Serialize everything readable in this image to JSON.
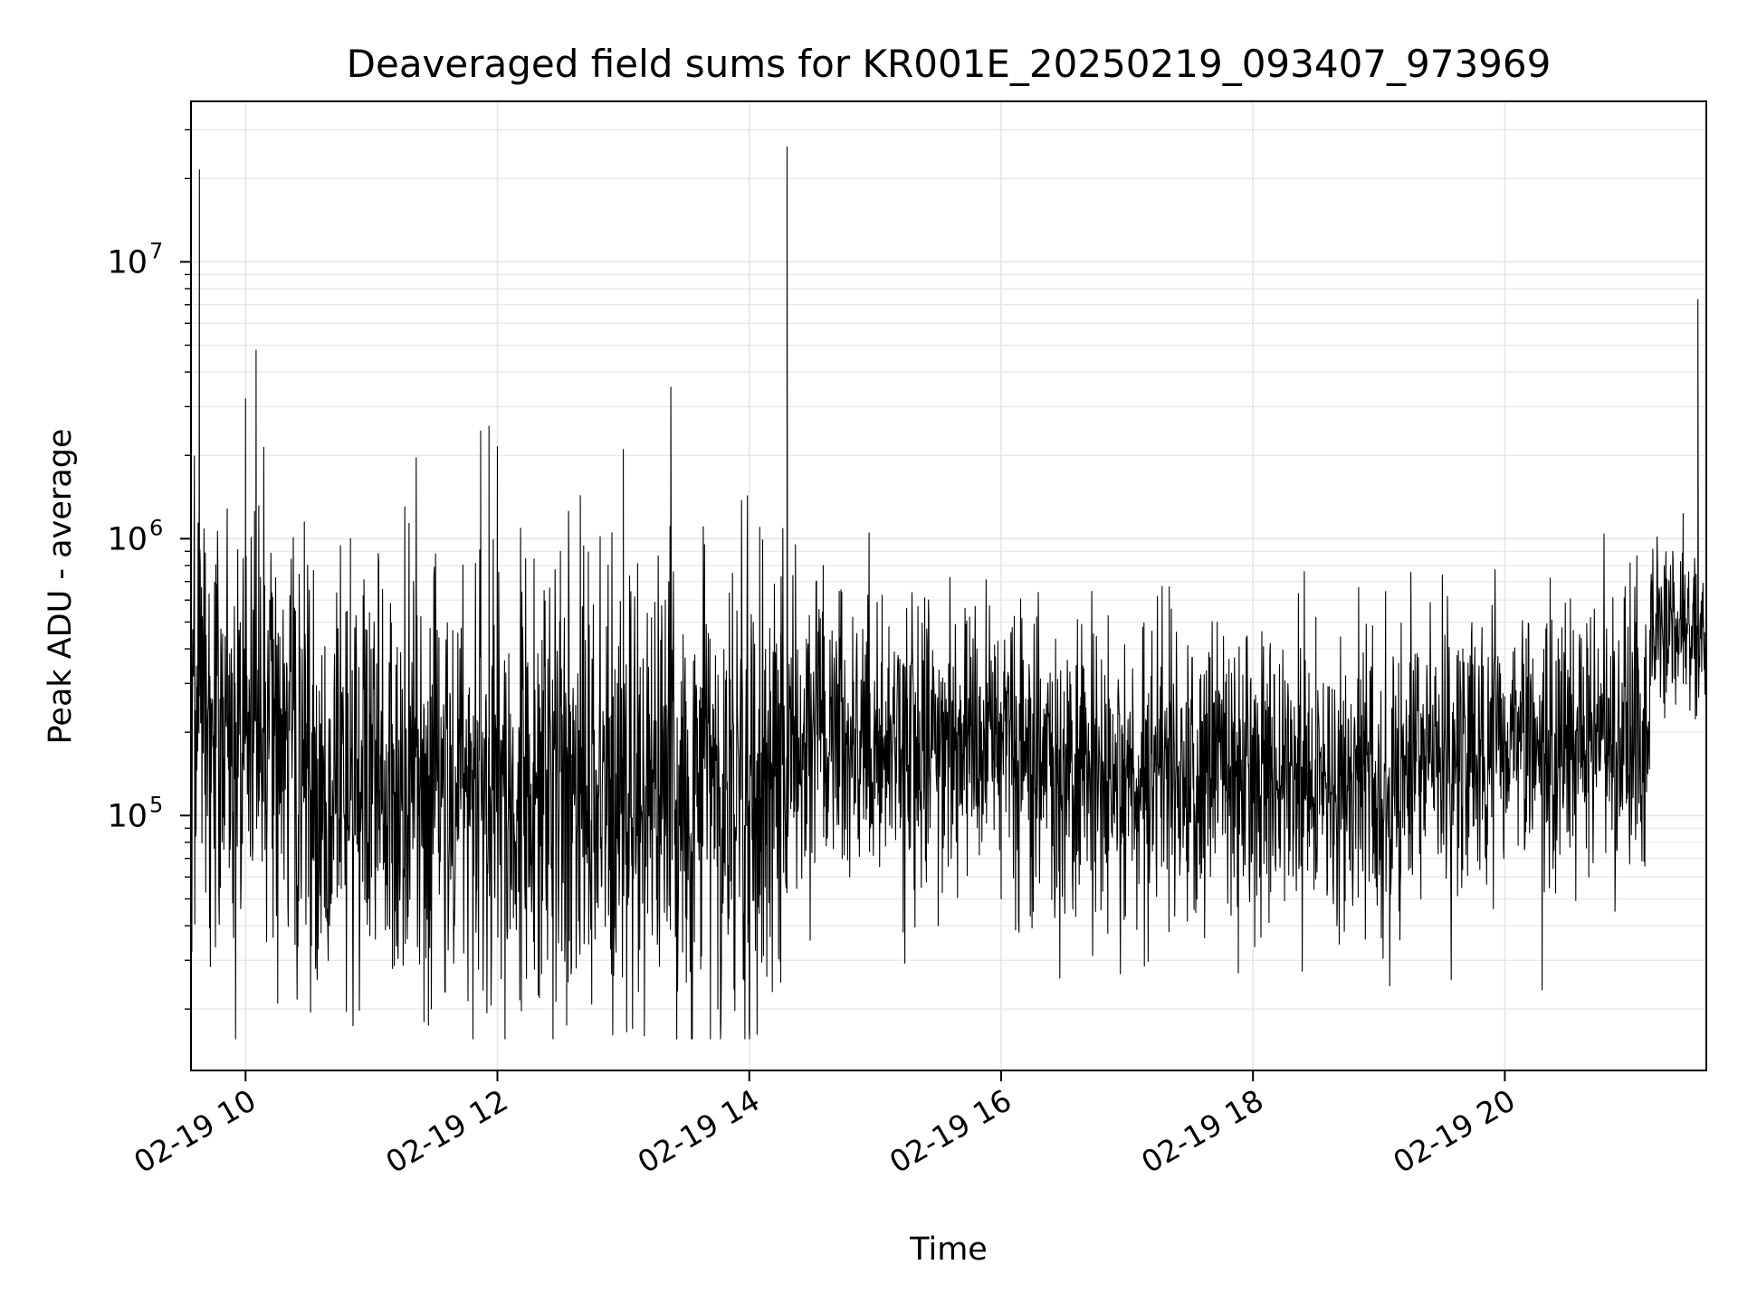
{
  "chart_data": {
    "type": "line",
    "title": "Deaveraged field sums for KR001E_20250219_093407_973969",
    "xlabel": "Time",
    "ylabel": "Peak ADU - average",
    "yscale": "log",
    "grid": true,
    "line_color": "#000000",
    "grid_color": "#e6e6e6",
    "x_start": "2025-02-19 09:34",
    "x_end": "2025-02-19 21:36",
    "ylim": [
      12000,
      38000000
    ],
    "x_ticks": [
      {
        "value": "2025-02-19 10:00",
        "label": "02-19 10"
      },
      {
        "value": "2025-02-19 12:00",
        "label": "02-19 12"
      },
      {
        "value": "2025-02-19 14:00",
        "label": "02-19 14"
      },
      {
        "value": "2025-02-19 16:00",
        "label": "02-19 16"
      },
      {
        "value": "2025-02-19 18:00",
        "label": "02-19 18"
      },
      {
        "value": "2025-02-19 20:00",
        "label": "02-19 20"
      }
    ],
    "y_ticks": [
      {
        "value": 100000,
        "base": "10",
        "exp": "5"
      },
      {
        "value": 1000000,
        "base": "10",
        "exp": "6"
      },
      {
        "value": 10000000,
        "base": "10",
        "exp": "7"
      }
    ],
    "series": [
      {
        "values": [
          [
            "2025-02-19 09:34",
            380000
          ],
          [
            "2025-02-19 09:38",
            21500000
          ],
          [
            "2025-02-19 09:42",
            200000
          ],
          [
            "2025-02-19 09:48",
            55000
          ],
          [
            "2025-02-19 09:55",
            300000
          ],
          [
            "2025-02-19 10:00",
            3200000
          ],
          [
            "2025-02-19 10:05",
            4800000
          ],
          [
            "2025-02-19 10:10",
            35000
          ],
          [
            "2025-02-19 10:20",
            90000
          ],
          [
            "2025-02-19 10:28",
            1150000
          ],
          [
            "2025-02-19 10:40",
            40000
          ],
          [
            "2025-02-19 10:50",
            1000000
          ],
          [
            "2025-02-19 11:00",
            60000
          ],
          [
            "2025-02-19 11:10",
            28000
          ],
          [
            "2025-02-19 11:20",
            700000
          ],
          [
            "2025-02-19 11:25",
            18000
          ],
          [
            "2025-02-19 11:40",
            150000
          ],
          [
            "2025-02-19 11:52",
            2450000
          ],
          [
            "2025-02-19 11:56",
            2550000
          ],
          [
            "2025-02-19 12:00",
            2150000
          ],
          [
            "2025-02-19 12:10",
            90000
          ],
          [
            "2025-02-19 12:20",
            22000
          ],
          [
            "2025-02-19 12:30",
            900000
          ],
          [
            "2025-02-19 12:33",
            17500
          ],
          [
            "2025-02-19 12:45",
            200000
          ],
          [
            "2025-02-19 12:55",
            19500
          ],
          [
            "2025-02-19 13:00",
            2100000
          ],
          [
            "2025-02-19 13:10",
            16000
          ],
          [
            "2025-02-19 13:20",
            600000
          ],
          [
            "2025-02-19 13:30",
            25000
          ],
          [
            "2025-02-19 13:45",
            20000
          ],
          [
            "2025-02-19 13:52",
            750000
          ],
          [
            "2025-02-19 14:00",
            17000
          ],
          [
            "2025-02-19 14:05",
            1100000
          ],
          [
            "2025-02-19 14:15",
            25000
          ],
          [
            "2025-02-19 14:18",
            26000000
          ],
          [
            "2025-02-19 14:22",
            950000
          ],
          [
            "2025-02-19 14:40",
            90000
          ],
          [
            "2025-02-19 15:00",
            200000
          ],
          [
            "2025-02-19 15:15",
            560000
          ],
          [
            "2025-02-19 15:30",
            40000
          ],
          [
            "2025-02-19 15:45",
            520000
          ],
          [
            "2025-02-19 16:00",
            50000
          ],
          [
            "2025-02-19 16:15",
            150000
          ],
          [
            "2025-02-19 16:30",
            280000
          ],
          [
            "2025-02-19 16:45",
            45000
          ],
          [
            "2025-02-19 17:00",
            170000
          ],
          [
            "2025-02-19 17:20",
            38000
          ],
          [
            "2025-02-19 17:45",
            220000
          ],
          [
            "2025-02-19 17:53",
            27000
          ],
          [
            "2025-02-19 18:10",
            150000
          ],
          [
            "2025-02-19 18:30",
            520000
          ],
          [
            "2025-02-19 18:40",
            40000
          ],
          [
            "2025-02-19 19:00",
            180000
          ],
          [
            "2025-02-19 19:20",
            50000
          ],
          [
            "2025-02-19 19:40",
            400000
          ],
          [
            "2025-02-19 20:00",
            220000
          ],
          [
            "2025-02-19 20:20",
            460000
          ],
          [
            "2025-02-19 20:40",
            60000
          ],
          [
            "2025-02-19 21:00",
            210000
          ],
          [
            "2025-02-19 21:08",
            150000
          ],
          [
            "2025-02-19 21:10",
            700000
          ],
          [
            "2025-02-19 21:20",
            900000
          ],
          [
            "2025-02-19 21:25",
            300000
          ],
          [
            "2025-02-19 21:32",
            7300000
          ],
          [
            "2025-02-19 21:36",
            450000
          ]
        ]
      }
    ]
  }
}
